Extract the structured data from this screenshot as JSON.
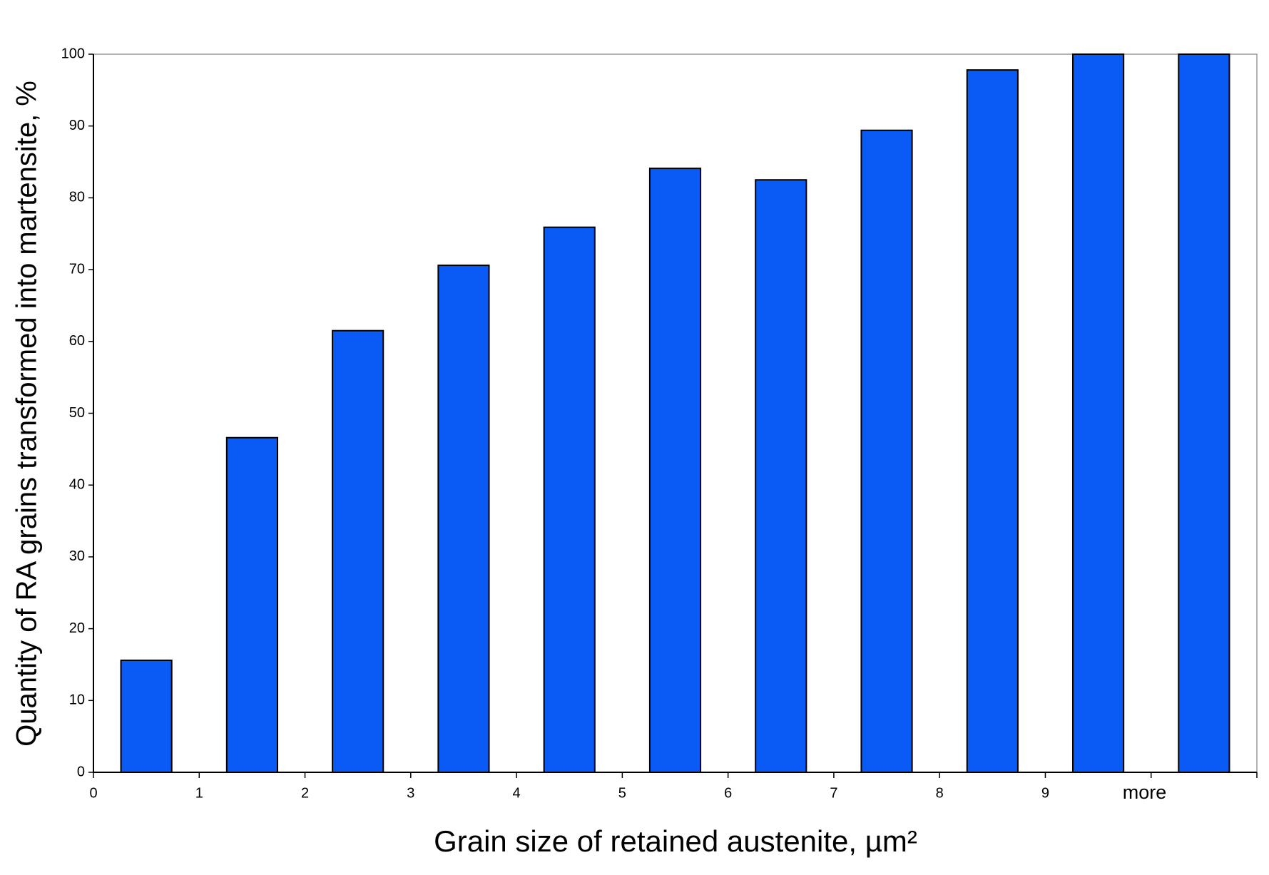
{
  "chart_data": {
    "type": "histogram",
    "x_label": "Grain size of retained austenite, µm²",
    "y_label": "Quantity of RA grains transformed into martensite, %",
    "bins": [
      0,
      1,
      2,
      3,
      4,
      5,
      6,
      7,
      8,
      9,
      "more",
      null
    ],
    "values": [
      15.6,
      46.6,
      61.5,
      70.6,
      75.9,
      84.1,
      82.5,
      89.4,
      97.8,
      100,
      100
    ],
    "color": "#0a5af5",
    "ylim": [
      0,
      100
    ],
    "yticks": [
      0,
      10,
      20,
      30,
      40,
      50,
      60,
      70,
      80,
      90,
      100
    ]
  }
}
